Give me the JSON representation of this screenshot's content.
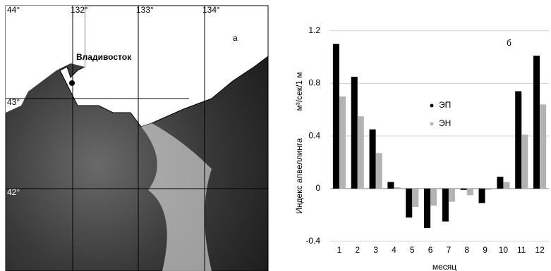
{
  "map": {
    "label": "а",
    "city": "Владивосток",
    "top_labels": [
      "44°",
      "132°",
      "133°",
      "134°"
    ],
    "side_labels": [
      "43°",
      "42°"
    ]
  },
  "chart_data": {
    "type": "bar",
    "label": "б",
    "y_label": "Индекс апвеллинга",
    "y_unit": "м³/сек/1 м",
    "x_label": "месяц",
    "categories": [
      "1",
      "2",
      "3",
      "4",
      "5",
      "6",
      "7",
      "8",
      "9",
      "10",
      "11",
      "12"
    ],
    "series": [
      {
        "name": "ЭП",
        "color": "#000000",
        "values": [
          1.1,
          0.85,
          0.45,
          0.05,
          -0.22,
          -0.3,
          -0.25,
          -0.01,
          -0.11,
          0.09,
          0.74,
          1.01
        ]
      },
      {
        "name": "ЭН",
        "color": "#b3b3b3",
        "values": [
          0.7,
          0.55,
          0.27,
          0.01,
          -0.14,
          -0.13,
          -0.1,
          -0.05,
          -0.01,
          0.05,
          0.41,
          0.64
        ]
      }
    ],
    "ylim": [
      -0.45,
      1.3
    ],
    "yticks": [
      -0.4,
      0,
      0.4,
      0.8,
      1.2
    ],
    "grid": true
  }
}
